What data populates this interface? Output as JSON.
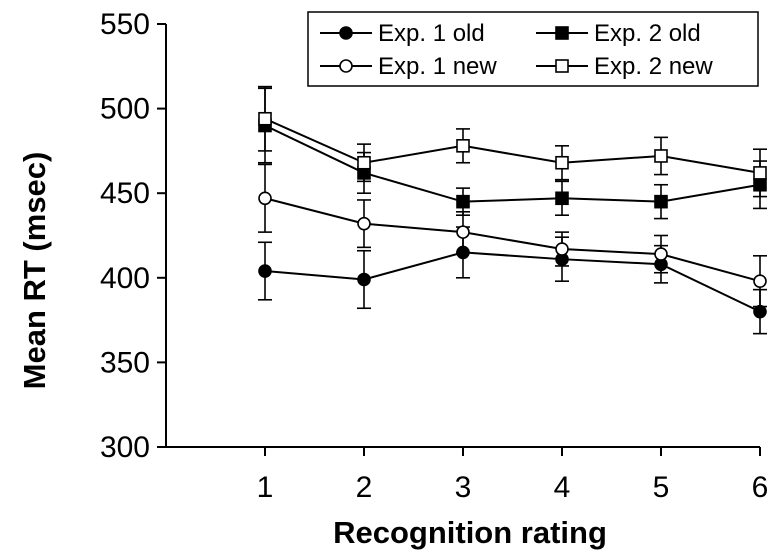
{
  "chart_data": {
    "type": "line",
    "title": "",
    "xlabel": "Recognition rating",
    "ylabel": "Mean RT (msec)",
    "x": [
      1,
      2,
      3,
      4,
      5,
      6
    ],
    "xlim": [
      0,
      6
    ],
    "ylim": [
      300,
      550
    ],
    "xticks": [
      1,
      2,
      3,
      4,
      5,
      6
    ],
    "yticks": [
      300,
      350,
      400,
      450,
      500,
      550
    ],
    "grid": false,
    "legend_position": "top-right",
    "series": [
      {
        "name": "Exp. 1 old",
        "marker": "filled-circle",
        "values": [
          404,
          399,
          415,
          411,
          408,
          380
        ],
        "error": [
          17,
          17,
          15,
          13,
          11,
          13
        ]
      },
      {
        "name": "Exp. 2 old",
        "marker": "filled-square",
        "values": [
          490,
          462,
          445,
          447,
          445,
          455
        ],
        "error": [
          22,
          12,
          8,
          10,
          10,
          14
        ]
      },
      {
        "name": "Exp. 1 new",
        "marker": "open-circle",
        "values": [
          447,
          432,
          427,
          417,
          414,
          398
        ],
        "error": [
          20,
          14,
          12,
          10,
          11,
          15
        ]
      },
      {
        "name": "Exp. 2 new",
        "marker": "open-square",
        "values": [
          494,
          468,
          478,
          468,
          472,
          462
        ],
        "error": [
          19,
          11,
          10,
          10,
          11,
          14
        ]
      }
    ]
  }
}
